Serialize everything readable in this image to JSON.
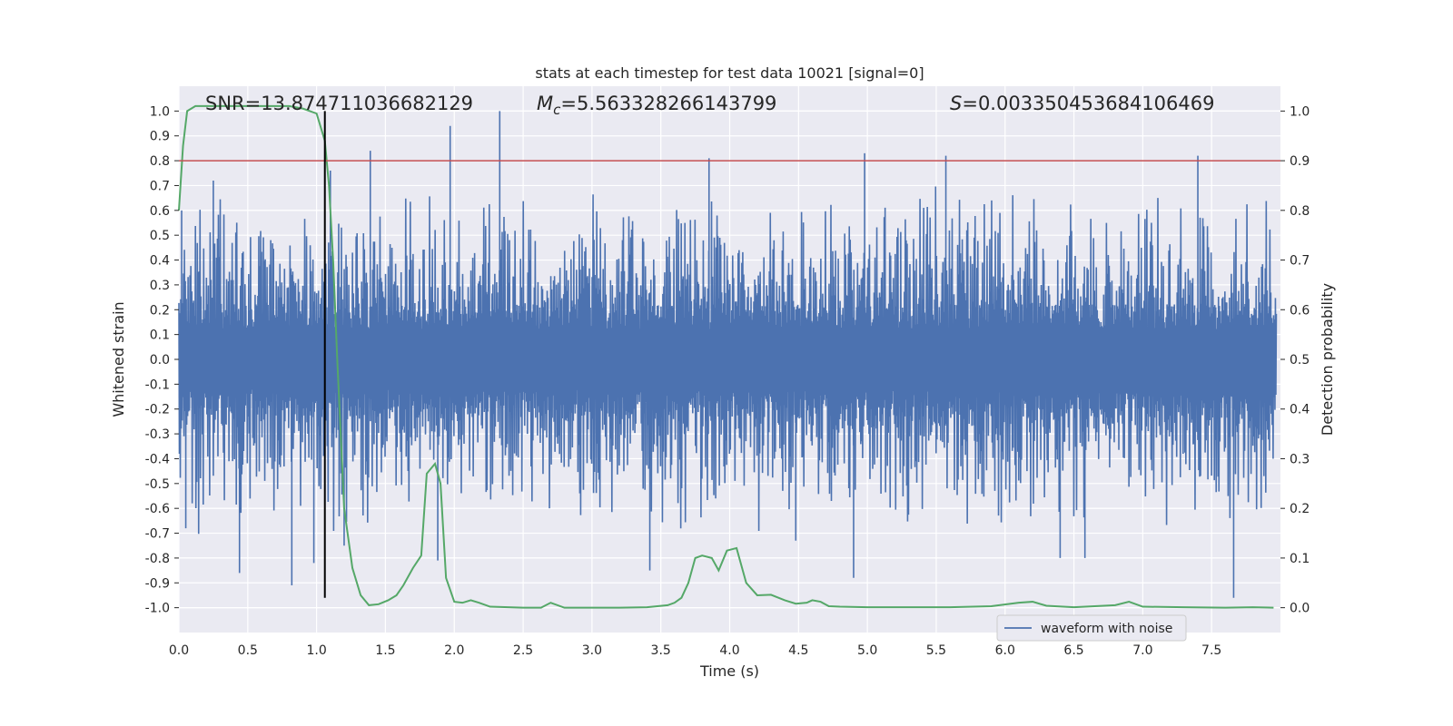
{
  "chart_data": {
    "type": "line",
    "title": "stats at each timestep for test data 10021 [signal=0]",
    "xlabel": "Time (s)",
    "ylabel": "Whitened strain",
    "y2label": "Detection probability",
    "xlim": [
      0.0,
      8.0
    ],
    "ylim": [
      -1.1,
      1.1
    ],
    "y2lim": [
      -0.05,
      1.05
    ],
    "xticks": [
      "0.0",
      "0.5",
      "1.0",
      "1.5",
      "2.0",
      "2.5",
      "3.0",
      "3.5",
      "4.0",
      "4.5",
      "5.0",
      "5.5",
      "6.0",
      "6.5",
      "7.0",
      "7.5"
    ],
    "yticks": [
      "1.0",
      "0.9",
      "0.8",
      "0.7",
      "0.6",
      "0.5",
      "0.4",
      "0.3",
      "0.2",
      "0.1",
      "0.0",
      "-0.1",
      "-0.2",
      "-0.3",
      "-0.4",
      "-0.5",
      "-0.6",
      "-0.7",
      "-0.8",
      "-0.9",
      "-1.0"
    ],
    "y2ticks": [
      "1.0",
      "0.9",
      "0.8",
      "0.7",
      "0.6",
      "0.5",
      "0.4",
      "0.3",
      "0.2",
      "0.1",
      "0.0"
    ],
    "grid": true,
    "legend_position": "lower-right",
    "annotations": {
      "snr": {
        "label": "SNR",
        "value": "=13.874711036682129"
      },
      "mc": {
        "label": "M",
        "sub": "c",
        "value": "=5.563328266143799"
      },
      "s": {
        "label": "S",
        "value": "=0.003350453684106469"
      }
    },
    "threshold": {
      "value": 0.9,
      "axis": "y2",
      "color": "#c44e52"
    },
    "marker_line": {
      "x": 1.06,
      "y_from": -0.96,
      "y_to": 1.0,
      "color": "#000000"
    },
    "series": [
      {
        "name": "waveform with noise",
        "axis": "y",
        "color": "#4c72b0",
        "style": "dense-noise",
        "envelope_typical": [
          -0.45,
          0.45
        ],
        "peaks": [
          {
            "x": 0.02,
            "y": 0.6
          },
          {
            "x": 0.05,
            "y": -0.68
          },
          {
            "x": 0.25,
            "y": 0.72
          },
          {
            "x": 0.44,
            "y": -0.86
          },
          {
            "x": 0.82,
            "y": -0.91
          },
          {
            "x": 0.98,
            "y": -0.82
          },
          {
            "x": 1.1,
            "y": 0.76
          },
          {
            "x": 1.2,
            "y": -0.75
          },
          {
            "x": 1.39,
            "y": 0.84
          },
          {
            "x": 1.88,
            "y": -0.81
          },
          {
            "x": 1.97,
            "y": 0.94
          },
          {
            "x": 2.33,
            "y": 1.0
          },
          {
            "x": 3.42,
            "y": -0.85
          },
          {
            "x": 3.85,
            "y": 0.81
          },
          {
            "x": 4.48,
            "y": -0.73
          },
          {
            "x": 4.9,
            "y": -0.88
          },
          {
            "x": 4.98,
            "y": 0.83
          },
          {
            "x": 5.57,
            "y": 0.82
          },
          {
            "x": 6.4,
            "y": -0.8
          },
          {
            "x": 6.58,
            "y": -0.8
          },
          {
            "x": 7.4,
            "y": 0.82
          },
          {
            "x": 7.66,
            "y": -0.96
          }
        ]
      },
      {
        "name": "detection probability",
        "axis": "y2",
        "color": "#55a868",
        "x": [
          0.0,
          0.03,
          0.06,
          0.12,
          0.2,
          0.4,
          0.6,
          0.8,
          0.9,
          1.0,
          1.06,
          1.09,
          1.12,
          1.15,
          1.2,
          1.26,
          1.32,
          1.38,
          1.45,
          1.52,
          1.58,
          1.63,
          1.7,
          1.76,
          1.8,
          1.86,
          1.9,
          1.94,
          2.0,
          2.06,
          2.12,
          2.18,
          2.26,
          2.5,
          2.63,
          2.7,
          2.8,
          3.0,
          3.2,
          3.4,
          3.55,
          3.6,
          3.65,
          3.7,
          3.75,
          3.8,
          3.87,
          3.92,
          3.98,
          4.05,
          4.12,
          4.2,
          4.3,
          4.4,
          4.48,
          4.56,
          4.6,
          4.66,
          4.72,
          4.8,
          5.0,
          5.3,
          5.6,
          5.9,
          6.1,
          6.2,
          6.3,
          6.5,
          6.8,
          6.9,
          7.0,
          7.3,
          7.6,
          7.8,
          7.95
        ],
        "y": [
          0.8,
          0.93,
          1.0,
          1.01,
          1.01,
          1.01,
          1.01,
          1.01,
          1.005,
          0.995,
          0.94,
          0.85,
          0.7,
          0.5,
          0.2,
          0.08,
          0.025,
          0.005,
          0.007,
          0.015,
          0.025,
          0.045,
          0.08,
          0.105,
          0.27,
          0.29,
          0.25,
          0.06,
          0.012,
          0.01,
          0.015,
          0.01,
          0.002,
          0.0,
          0.0,
          0.01,
          0.0,
          0.0,
          0.0,
          0.001,
          0.005,
          0.01,
          0.02,
          0.05,
          0.1,
          0.105,
          0.1,
          0.075,
          0.115,
          0.12,
          0.05,
          0.025,
          0.026,
          0.015,
          0.008,
          0.01,
          0.015,
          0.012,
          0.003,
          0.002,
          0.001,
          0.001,
          0.001,
          0.003,
          0.01,
          0.012,
          0.004,
          0.001,
          0.005,
          0.012,
          0.002,
          0.001,
          0.0,
          0.001,
          0.0
        ]
      }
    ]
  }
}
